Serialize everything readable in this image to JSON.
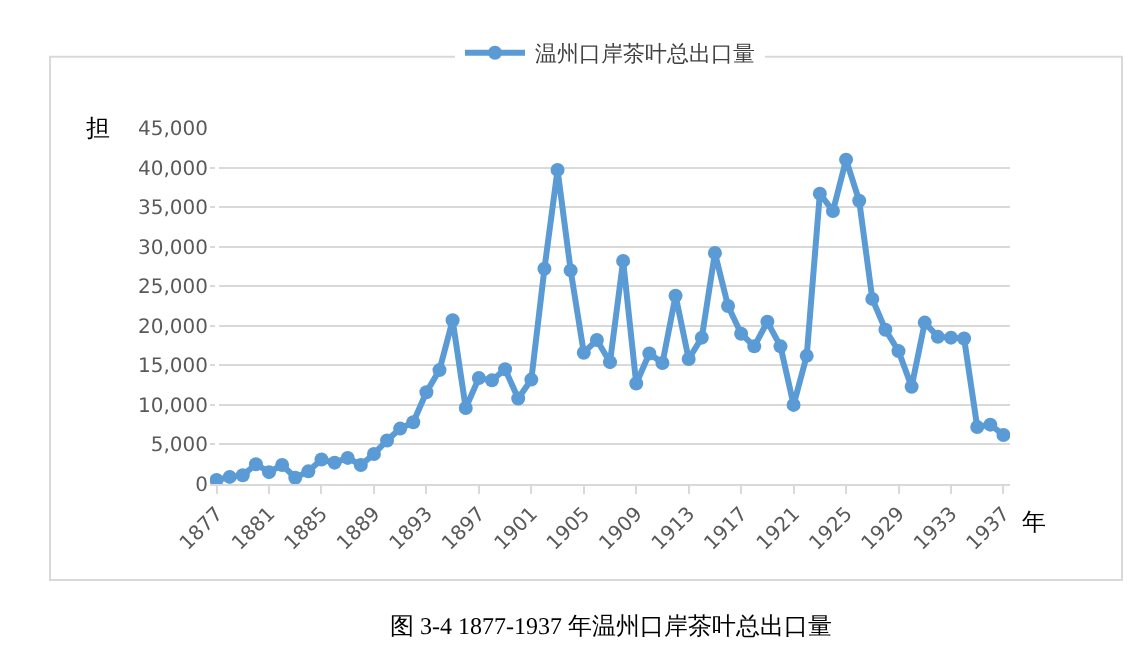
{
  "chart_data": {
    "type": "line",
    "categories": [
      "1877",
      null,
      null,
      null,
      "1881",
      null,
      null,
      null,
      "1885",
      null,
      null,
      null,
      "1889",
      null,
      null,
      null,
      "1893",
      null,
      null,
      null,
      "1897",
      null,
      null,
      null,
      "1901",
      null,
      null,
      null,
      "1905",
      null,
      null,
      null,
      "1909",
      null,
      null,
      null,
      "1913",
      null,
      null,
      null,
      "1917",
      null,
      null,
      null,
      "1921",
      null,
      null,
      null,
      "1925",
      null,
      null,
      null,
      "1929",
      null,
      null,
      null,
      "1933",
      null,
      null,
      null,
      "1937"
    ],
    "series": [
      {
        "name": "温州口岸茶叶总出口量",
        "color": "#5b9bd5",
        "values": [
          500,
          900,
          1100,
          2500,
          1500,
          2400,
          800,
          1600,
          3100,
          2700,
          3300,
          2400,
          3800,
          5500,
          7000,
          7800,
          11600,
          14400,
          20700,
          9600,
          13400,
          13100,
          14500,
          10800,
          13200,
          27200,
          39700,
          27000,
          16600,
          18200,
          15400,
          28200,
          12700,
          16500,
          15300,
          23800,
          15800,
          18500,
          29200,
          22500,
          19000,
          17400,
          20500,
          17400,
          10000,
          16200,
          36700,
          34500,
          41000,
          35800,
          23400,
          19500,
          16800,
          12300,
          20400,
          18600,
          18500,
          18400,
          7200,
          7500,
          6200
        ]
      }
    ],
    "ylabel": "担",
    "xlabel": "年",
    "ylim": [
      0,
      45000
    ],
    "yticks": [
      {
        "value": 0,
        "label": "0"
      },
      {
        "value": 5000,
        "label": "5,000"
      },
      {
        "value": 10000,
        "label": "10,000"
      },
      {
        "value": 15000,
        "label": "15,000"
      },
      {
        "value": 20000,
        "label": "20,000"
      },
      {
        "value": 25000,
        "label": "25,000"
      },
      {
        "value": 30000,
        "label": "30,000"
      },
      {
        "value": 35000,
        "label": "35,000"
      },
      {
        "value": 40000,
        "label": "40,000"
      },
      {
        "value": 45000,
        "label": "45,000"
      }
    ],
    "annotations": [
      "图 3-4 1877-1937 年温州口岸茶叶总出口量"
    ],
    "grid": "y",
    "legend": "top",
    "marker": "circle",
    "line_style": "solid"
  }
}
